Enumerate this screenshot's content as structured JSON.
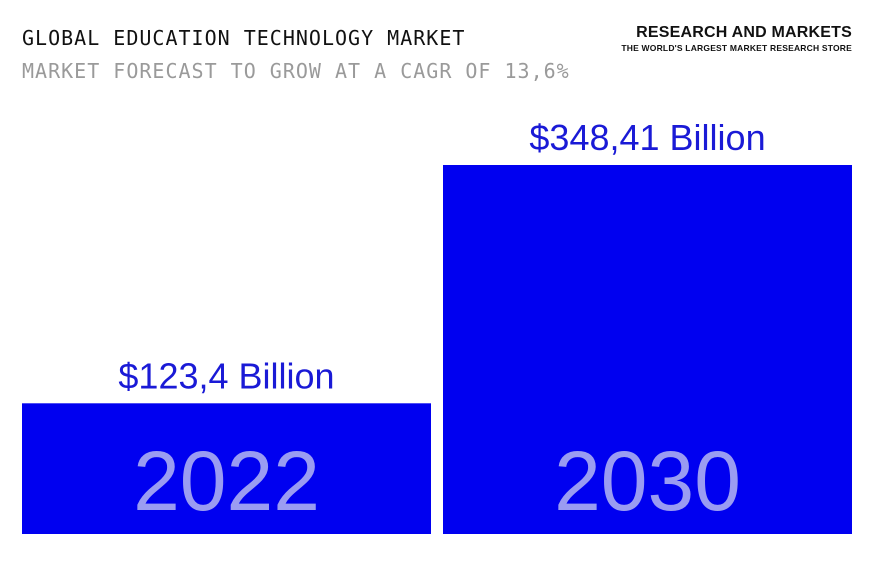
{
  "header": {
    "title": "GLOBAL EDUCATION TECHNOLOGY MARKET",
    "subtitle": "MARKET FORECAST TO GROW AT A CAGR OF 13,6%"
  },
  "brand": {
    "name": "RESEARCH AND MARKETS",
    "tagline": "THE WORLD'S LARGEST MARKET RESEARCH STORE"
  },
  "colors": {
    "bar": "#0000f0",
    "value_label": "#1a1ad6",
    "year_label": "#9a9cf2"
  },
  "chart_data": {
    "type": "bar",
    "categories": [
      "2022",
      "2030"
    ],
    "values": [
      123.4,
      348.41
    ],
    "value_labels": [
      "$123,4 Billion",
      "$348,41 Billion"
    ],
    "title": "GLOBAL EDUCATION TECHNOLOGY MARKET",
    "subtitle": "MARKET FORECAST TO GROW AT A CAGR OF 13,6%",
    "xlabel": "",
    "ylabel": "",
    "ylim": [
      0,
      348.41
    ],
    "grid": false,
    "legend": "none"
  }
}
